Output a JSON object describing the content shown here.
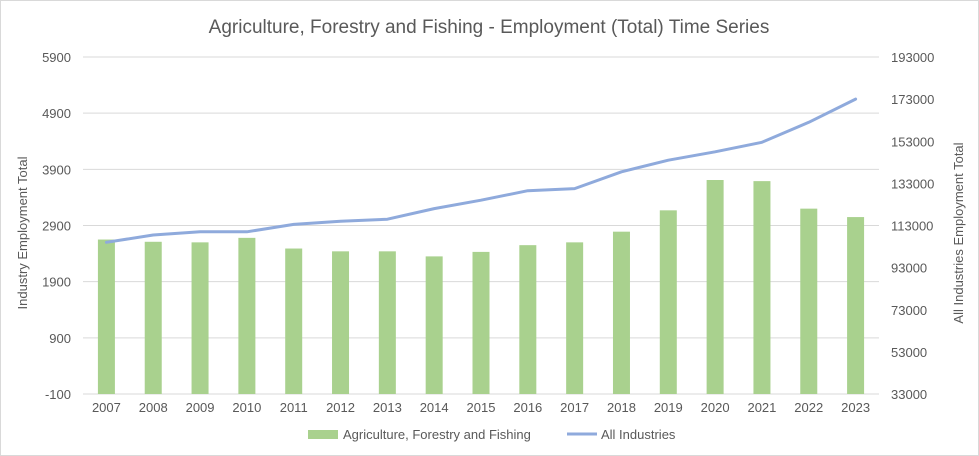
{
  "chart_data": {
    "type": "bar",
    "title": "Agriculture, Forestry and Fishing - Employment (Total) Time Series",
    "categories": [
      "2007",
      "2008",
      "2009",
      "2010",
      "2011",
      "2012",
      "2013",
      "2014",
      "2015",
      "2016",
      "2017",
      "2018",
      "2019",
      "2020",
      "2021",
      "2022",
      "2023"
    ],
    "ylabel_left": "Industry Employment Total",
    "ylabel_right": "All Industries Employment Total",
    "y_left_ticks": [
      "5900",
      "4900",
      "3900",
      "2900",
      "1900",
      "900",
      "-100"
    ],
    "y_right_ticks": [
      "193000",
      "173000",
      "153000",
      "133000",
      "113000",
      "93000",
      "73000",
      "53000",
      "33000"
    ],
    "y_left_range": [
      -100,
      5900
    ],
    "y_right_range": [
      33000,
      193000
    ],
    "series": [
      {
        "name": "Agriculture, Forestry and Fishing",
        "type": "bar",
        "axis": "left",
        "color": "#a9d18e",
        "values": [
          2650,
          2610,
          2600,
          2680,
          2490,
          2440,
          2440,
          2350,
          2430,
          2550,
          2600,
          2790,
          3170,
          3710,
          3690,
          3200,
          3050
        ]
      },
      {
        "name": "All Industries",
        "type": "line",
        "axis": "right",
        "color": "#8faadc",
        "values": [
          105000,
          108500,
          110000,
          110000,
          113500,
          115000,
          116000,
          121000,
          125000,
          129500,
          130500,
          138500,
          144000,
          148000,
          152500,
          162000,
          173000
        ]
      }
    ],
    "grid": true,
    "legend_position": "bottom"
  }
}
